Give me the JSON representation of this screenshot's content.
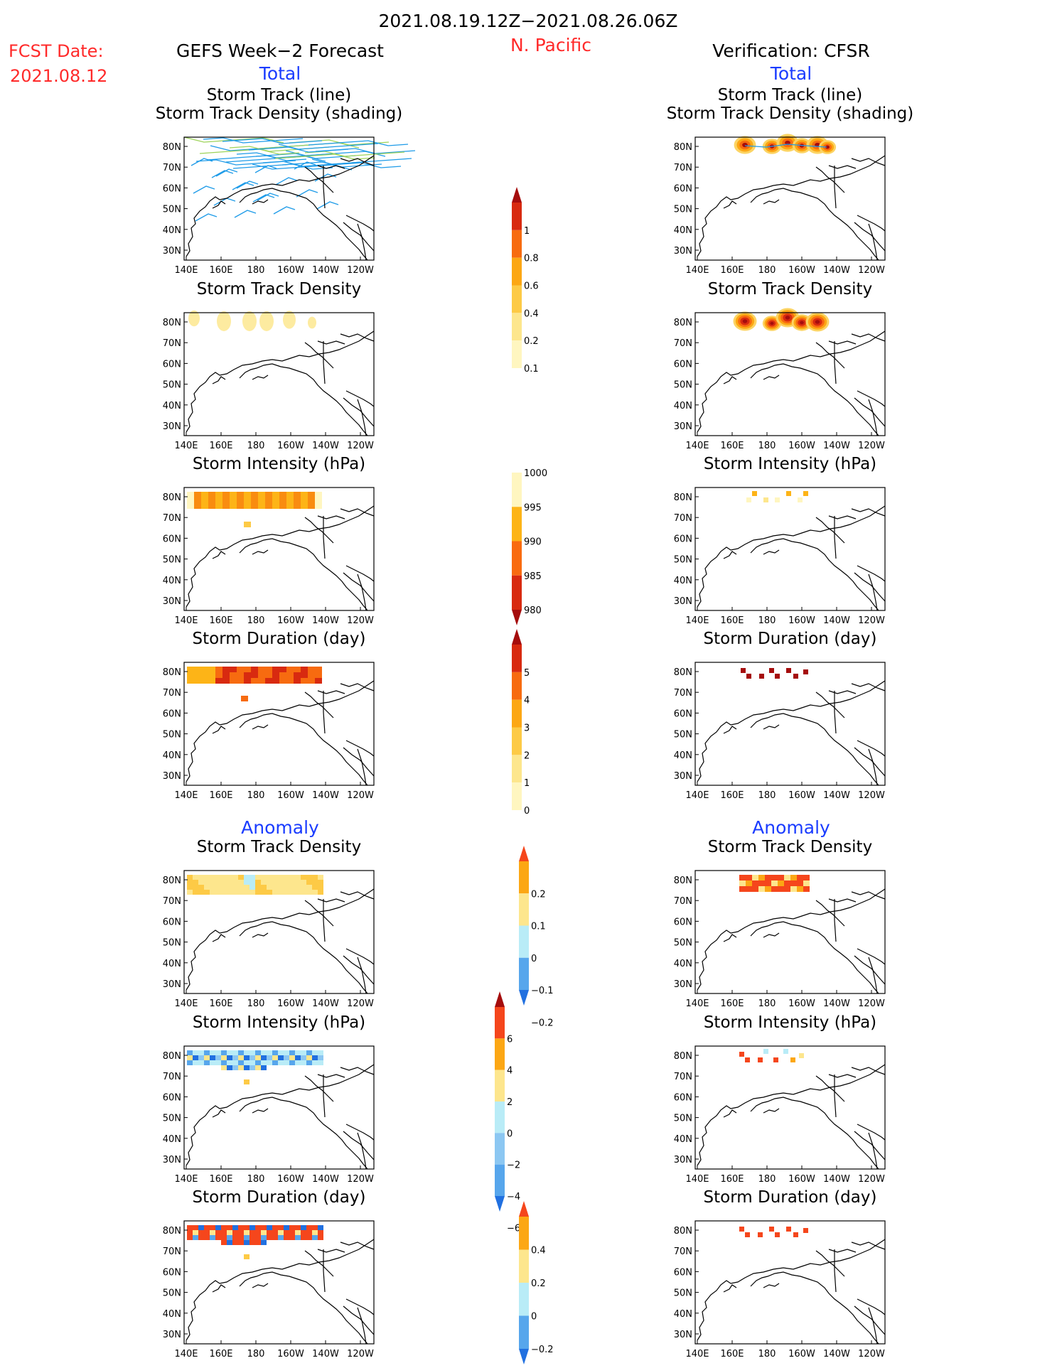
{
  "header": {
    "date_range": "2021.08.19.12Z−2021.08.26.06Z",
    "region": "N. Pacific",
    "fcst_label": "FCST Date:",
    "fcst_date": "2021.08.12",
    "left_title": "GEFS Week−2 Forecast",
    "right_title": "Verification: CFSR",
    "total_label": "Total",
    "anomaly_label": "Anomaly"
  },
  "map_axes": {
    "lat_labels": [
      "80N",
      "70N",
      "60N",
      "50N",
      "40N",
      "30N"
    ],
    "lon_labels": [
      "140E",
      "160E",
      "180",
      "160W",
      "140W",
      "120W"
    ]
  },
  "panel_titles": {
    "track_line": "Storm Track (line)",
    "track_density_shading": "Storm Track Density (shading)",
    "track_density": "Storm Track Density",
    "intensity": "Storm Intensity (hPa)",
    "duration": "Storm Duration (day)"
  },
  "colorbars": {
    "density": {
      "labels": [
        "1",
        "0.8",
        "0.6",
        "0.4",
        "0.2",
        "0.1"
      ],
      "colors": [
        "#a50d0d",
        "#d82a10",
        "#f76b10",
        "#fca714",
        "#fdca46",
        "#fde68d",
        "#fff6c0"
      ]
    },
    "intensity": {
      "labels": [
        "1000",
        "995",
        "990",
        "985",
        "980"
      ],
      "colors": [
        "#fff6c0",
        "#fdb417",
        "#f96b10",
        "#d82a10",
        "#a50d0d"
      ]
    },
    "duration": {
      "labels": [
        "5",
        "4",
        "3",
        "2",
        "1",
        "0"
      ],
      "colors": [
        "#a50d0d",
        "#d82a10",
        "#f76b10",
        "#fca714",
        "#fdca46",
        "#fde68d",
        "#fff6c0"
      ]
    },
    "anom_density": {
      "labels": [
        "0.2",
        "0.1",
        "0",
        "−0.1",
        "−0.2"
      ],
      "colors": [
        "#f5461c",
        "#fca714",
        "#fde68d",
        "#b9ecf7",
        "#57a6ec",
        "#2170e0"
      ]
    },
    "anom_intensity": {
      "labels": [
        "6",
        "4",
        "2",
        "0",
        "−2",
        "−4",
        "−6"
      ],
      "colors": [
        "#a50d0d",
        "#f5461c",
        "#fca714",
        "#fde68d",
        "#b9ecf7",
        "#8cc7f2",
        "#57a6ec",
        "#2170e0"
      ]
    },
    "anom_duration": {
      "labels": [
        "0.4",
        "0.2",
        "0",
        "−0.2",
        "−0.4"
      ],
      "colors": [
        "#f5461c",
        "#fca714",
        "#fde68d",
        "#b9ecf7",
        "#57a6ec",
        "#2170e0"
      ]
    }
  },
  "chart_data": [
    {
      "type": "heatmap",
      "title": "Storm Track (line) / Storm Track Density (shading)",
      "source": "GEFS Week−2 Forecast",
      "x_range": [
        "140E",
        "115W"
      ],
      "y_range": [
        "25N",
        "85N"
      ],
      "features": "ensemble storm track lines across 70N–85N and scattered tracks 40N–70N"
    },
    {
      "type": "heatmap",
      "title": "Storm Track (line) / Storm Track Density (shading)",
      "source": "Verification: CFSR",
      "density_peaks_lon": [
        "170E",
        "175W",
        "165W",
        "160W",
        "150W"
      ],
      "density_peaks_lat": "78N–81N"
    },
    {
      "type": "heatmap",
      "title": "Storm Track Density",
      "source": "GEFS Week−2 Forecast",
      "range": [
        0.1,
        0.2
      ],
      "region": "75N–82N"
    },
    {
      "type": "heatmap",
      "title": "Storm Track Density",
      "source": "Verification: CFSR",
      "range": [
        0.1,
        1.0
      ],
      "region": "75N–82N"
    },
    {
      "type": "heatmap",
      "title": "Storm Intensity (hPa)",
      "source": "GEFS Week−2 Forecast",
      "range": [
        990,
        1000
      ]
    },
    {
      "type": "heatmap",
      "title": "Storm Intensity (hPa)",
      "source": "Verification: CFSR",
      "range": [
        995,
        1000
      ]
    },
    {
      "type": "heatmap",
      "title": "Storm Duration (day)",
      "source": "GEFS Week−2 Forecast",
      "range": [
        2,
        4
      ]
    },
    {
      "type": "heatmap",
      "title": "Storm Duration (day)",
      "source": "Verification: CFSR",
      "range": [
        5,
        5
      ]
    },
    {
      "type": "heatmap",
      "title": "Storm Track Density (Anomaly)",
      "source": "GEFS Week−2 Forecast",
      "range": [
        -0.1,
        0.1
      ]
    },
    {
      "type": "heatmap",
      "title": "Storm Track Density (Anomaly)",
      "source": "Verification: CFSR",
      "range": [
        0.1,
        0.2
      ]
    },
    {
      "type": "heatmap",
      "title": "Storm Intensity (hPa) (Anomaly)",
      "source": "GEFS Week−2 Forecast",
      "range": [
        -6,
        2
      ]
    },
    {
      "type": "heatmap",
      "title": "Storm Intensity (hPa) (Anomaly)",
      "source": "Verification: CFSR",
      "range": [
        -2,
        4
      ]
    },
    {
      "type": "heatmap",
      "title": "Storm Duration (day) (Anomaly)",
      "source": "GEFS Week−2 Forecast",
      "range": [
        -0.4,
        0.4
      ]
    },
    {
      "type": "heatmap",
      "title": "Storm Duration (day) (Anomaly)",
      "source": "Verification: CFSR",
      "range": [
        0.4,
        0.4
      ]
    }
  ]
}
